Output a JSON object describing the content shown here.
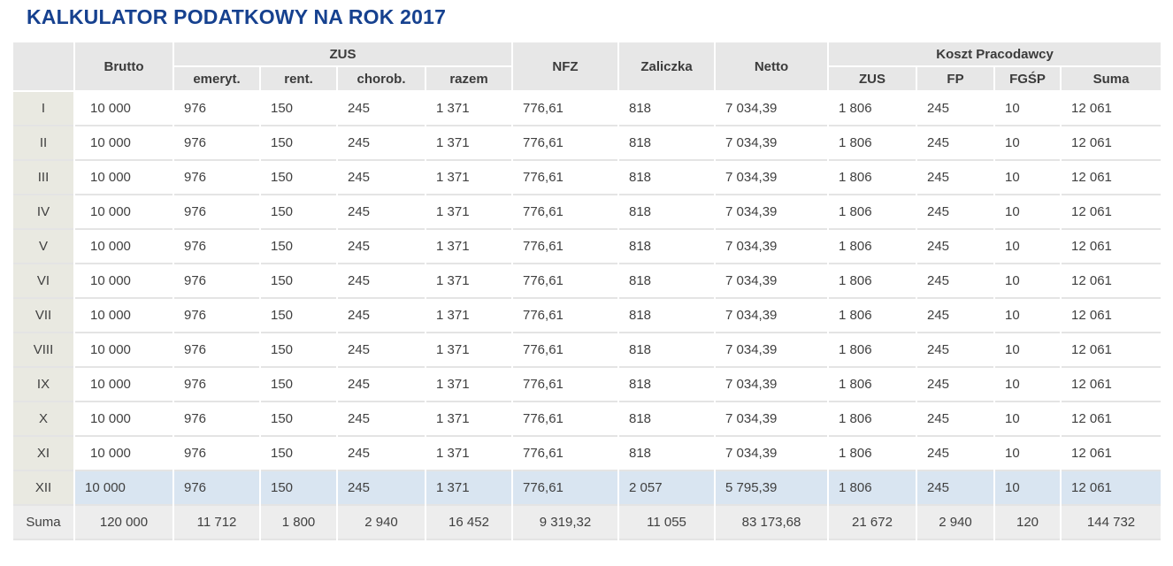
{
  "page": {
    "title": "KALKULATOR PODATKOWY NA ROK 2017"
  },
  "colors": {
    "title": "#16418f",
    "header_bg": "#e7e7e7",
    "header_text": "#3b3b3b",
    "body_text": "#404040",
    "month_cell_bg": "#e9e9e1",
    "highlight_row_bg": "#d9e5f1",
    "sum_row_bg": "#ededed",
    "row_separator": "#e4e4e4"
  },
  "table": {
    "header": {
      "corner": "",
      "brutto": "Brutto",
      "zus_group": "ZUS",
      "nfz": "NFZ",
      "zaliczka": "Zaliczka",
      "netto": "Netto",
      "koszt_group": "Koszt Pracodawcy",
      "sub": [
        "emeryt.",
        "rent.",
        "chorob.",
        "razem",
        "ZUS",
        "FP",
        "FGŚP",
        "Suma"
      ]
    },
    "rows": [
      {
        "month": "I",
        "highlight": false,
        "values": [
          "10 000",
          "976",
          "150",
          "245",
          "1 371",
          "776,61",
          "818",
          "7 034,39",
          "1 806",
          "245",
          "10",
          "12 061"
        ]
      },
      {
        "month": "II",
        "highlight": false,
        "values": [
          "10 000",
          "976",
          "150",
          "245",
          "1 371",
          "776,61",
          "818",
          "7 034,39",
          "1 806",
          "245",
          "10",
          "12 061"
        ]
      },
      {
        "month": "III",
        "highlight": false,
        "values": [
          "10 000",
          "976",
          "150",
          "245",
          "1 371",
          "776,61",
          "818",
          "7 034,39",
          "1 806",
          "245",
          "10",
          "12 061"
        ]
      },
      {
        "month": "IV",
        "highlight": false,
        "values": [
          "10 000",
          "976",
          "150",
          "245",
          "1 371",
          "776,61",
          "818",
          "7 034,39",
          "1 806",
          "245",
          "10",
          "12 061"
        ]
      },
      {
        "month": "V",
        "highlight": false,
        "values": [
          "10 000",
          "976",
          "150",
          "245",
          "1 371",
          "776,61",
          "818",
          "7 034,39",
          "1 806",
          "245",
          "10",
          "12 061"
        ]
      },
      {
        "month": "VI",
        "highlight": false,
        "values": [
          "10 000",
          "976",
          "150",
          "245",
          "1 371",
          "776,61",
          "818",
          "7 034,39",
          "1 806",
          "245",
          "10",
          "12 061"
        ]
      },
      {
        "month": "VII",
        "highlight": false,
        "values": [
          "10 000",
          "976",
          "150",
          "245",
          "1 371",
          "776,61",
          "818",
          "7 034,39",
          "1 806",
          "245",
          "10",
          "12 061"
        ]
      },
      {
        "month": "VIII",
        "highlight": false,
        "values": [
          "10 000",
          "976",
          "150",
          "245",
          "1 371",
          "776,61",
          "818",
          "7 034,39",
          "1 806",
          "245",
          "10",
          "12 061"
        ]
      },
      {
        "month": "IX",
        "highlight": false,
        "values": [
          "10 000",
          "976",
          "150",
          "245",
          "1 371",
          "776,61",
          "818",
          "7 034,39",
          "1 806",
          "245",
          "10",
          "12 061"
        ]
      },
      {
        "month": "X",
        "highlight": false,
        "values": [
          "10 000",
          "976",
          "150",
          "245",
          "1 371",
          "776,61",
          "818",
          "7 034,39",
          "1 806",
          "245",
          "10",
          "12 061"
        ]
      },
      {
        "month": "XI",
        "highlight": false,
        "values": [
          "10 000",
          "976",
          "150",
          "245",
          "1 371",
          "776,61",
          "818",
          "7 034,39",
          "1 806",
          "245",
          "10",
          "12 061"
        ]
      },
      {
        "month": "XII",
        "highlight": true,
        "values": [
          "10 000",
          "976",
          "150",
          "245",
          "1 371",
          "776,61",
          "2 057",
          "5 795,39",
          "1 806",
          "245",
          "10",
          "12 061"
        ]
      }
    ],
    "sum_row": {
      "label": "Suma",
      "values": [
        "120 000",
        "11 712",
        "1 800",
        "2 940",
        "16 452",
        "9 319,32",
        "11 055",
        "83 173,68",
        "21 672",
        "2 940",
        "120",
        "144 732"
      ]
    }
  }
}
